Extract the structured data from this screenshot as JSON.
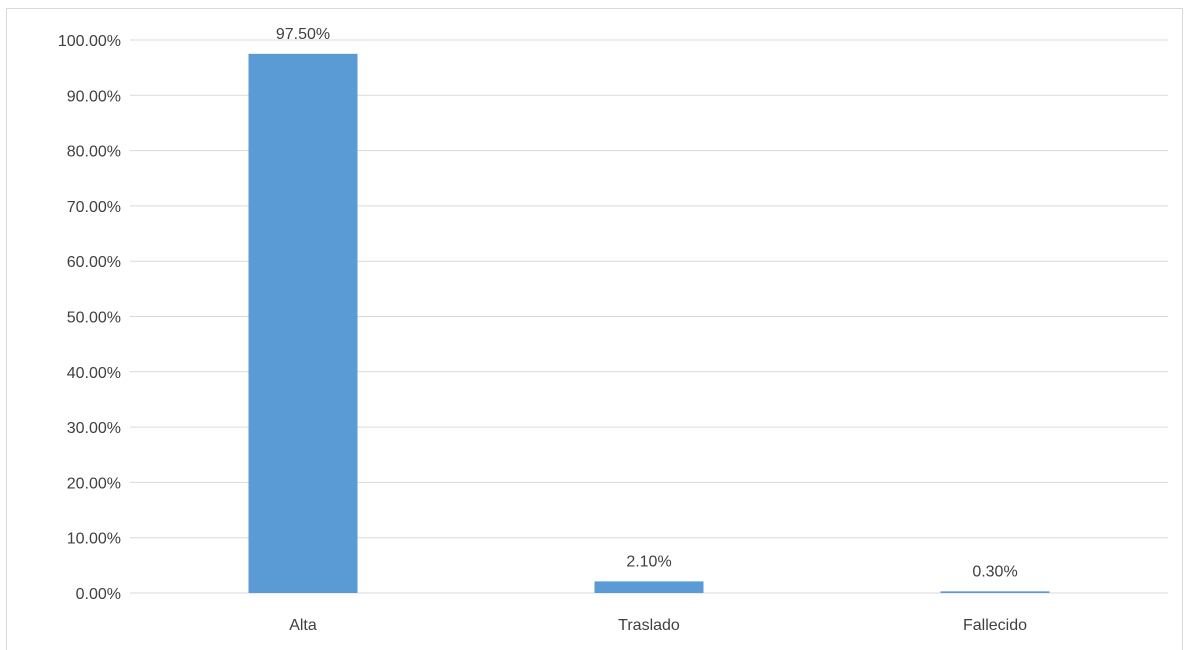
{
  "chart_data": {
    "type": "bar",
    "title": "",
    "xlabel": "",
    "ylabel": "",
    "categories": [
      "Alta",
      "Traslado",
      "Fallecido"
    ],
    "values": [
      97.5,
      2.1,
      0.3
    ],
    "data_labels": [
      "97.50%",
      "2.10%",
      "0.30%"
    ],
    "ylim": [
      0,
      100
    ],
    "y_ticks": [
      0,
      10,
      20,
      30,
      40,
      50,
      60,
      70,
      80,
      90,
      100
    ],
    "y_tick_labels": [
      "0.00%",
      "10.00%",
      "20.00%",
      "30.00%",
      "40.00%",
      "50.00%",
      "60.00%",
      "70.00%",
      "80.00%",
      "90.00%",
      "100.00%"
    ],
    "grid": true,
    "legend": "none",
    "colors": {
      "bar": "#5b9bd5",
      "grid": "#d9d9d9",
      "text": "#404040",
      "frame": "#d9d9d9"
    }
  }
}
